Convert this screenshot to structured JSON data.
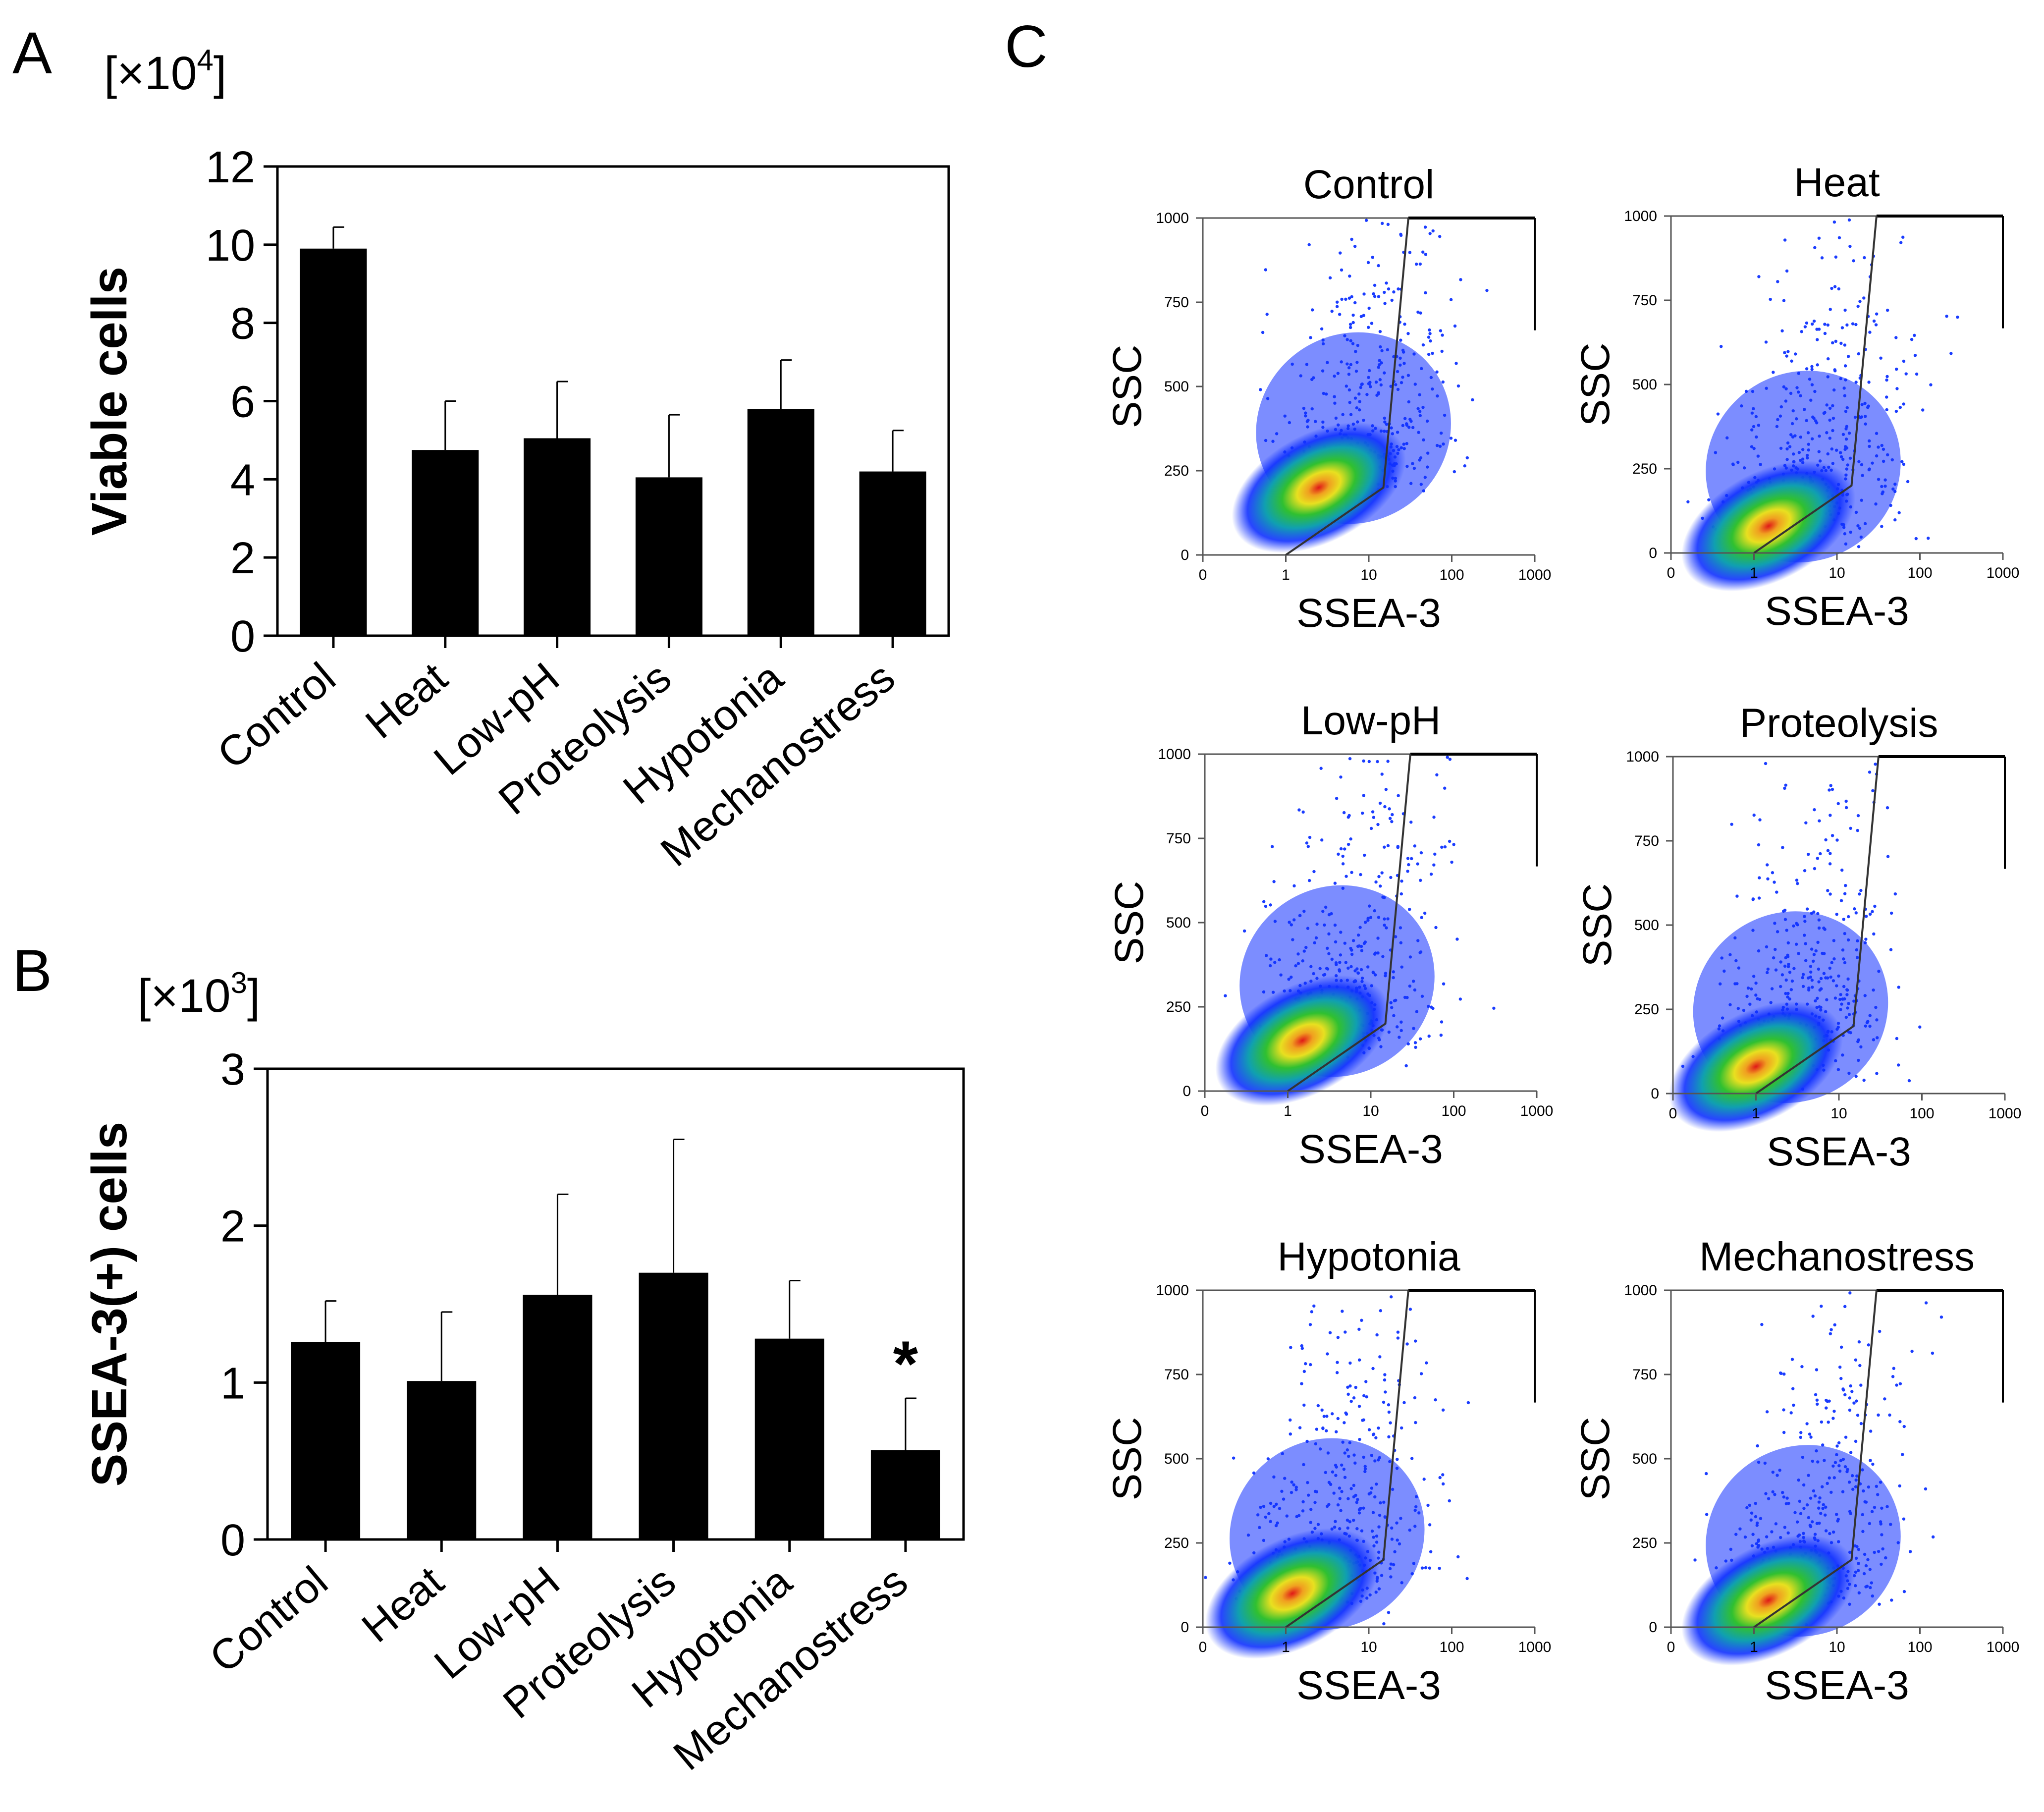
{
  "panels": {
    "a": {
      "letter": "A",
      "multiplier_prefix": "[×10",
      "multiplier_exp": "4",
      "multiplier_suffix": "]"
    },
    "b": {
      "letter": "B",
      "multiplier_prefix": "[×10",
      "multiplier_exp": "3",
      "multiplier_suffix": "]"
    },
    "c": {
      "letter": "C"
    }
  },
  "chart_data": [
    {
      "id": "A",
      "type": "bar",
      "ylabel": "Viable cells",
      "unit_multiplier": "×10^4",
      "ylim": [
        0,
        12
      ],
      "yticks": [
        0,
        2,
        4,
        6,
        8,
        10,
        12
      ],
      "categories": [
        "Control",
        "Heat",
        "Low-pH",
        "Proteolysis",
        "Hypotonia",
        "Mechanostress"
      ],
      "values": [
        9.9,
        4.75,
        5.05,
        4.05,
        5.8,
        4.2
      ],
      "errors": [
        0.55,
        1.25,
        1.45,
        1.6,
        1.25,
        1.05
      ],
      "annotations": []
    },
    {
      "id": "B",
      "type": "bar",
      "ylabel": "SSEA-3(+) cells",
      "unit_multiplier": "×10^3",
      "ylim": [
        0,
        3
      ],
      "yticks": [
        0,
        1,
        2,
        3
      ],
      "categories": [
        "Control",
        "Heat",
        "Low-pH",
        "Proteolysis",
        "Hypotonia",
        "Mechanostress"
      ],
      "values": [
        1.26,
        1.01,
        1.56,
        1.7,
        1.28,
        0.57
      ],
      "errors": [
        0.26,
        0.44,
        0.64,
        0.85,
        0.37,
        0.33
      ],
      "annotations": [
        {
          "category": "Mechanostress",
          "text": "*"
        }
      ]
    },
    {
      "id": "C",
      "type": "scatter",
      "subtype": "flow-cytometry density plots",
      "xlabel": "SSEA-3",
      "ylabel": "SSC",
      "x_scale": "log",
      "xticks": [
        "0",
        "1",
        "10",
        "100",
        "1000"
      ],
      "yticks": [
        0,
        250,
        500,
        750,
        1000
      ],
      "ylim": [
        0,
        1000
      ],
      "gate_points": [
        [
          1,
          0
        ],
        [
          15,
          200
        ],
        [
          30,
          1000
        ]
      ],
      "plots": [
        {
          "title": "Control",
          "center_x": 2.5,
          "center_y": 200
        },
        {
          "title": "Heat",
          "center_x": 1.5,
          "center_y": 80
        },
        {
          "title": "Low-pH",
          "center_x": 1.5,
          "center_y": 150
        },
        {
          "title": "Proteolysis",
          "center_x": 1.0,
          "center_y": 80
        },
        {
          "title": "Hypotonia",
          "center_x": 1.2,
          "center_y": 100
        },
        {
          "title": "Mechanostress",
          "center_x": 1.5,
          "center_y": 80
        }
      ]
    }
  ]
}
